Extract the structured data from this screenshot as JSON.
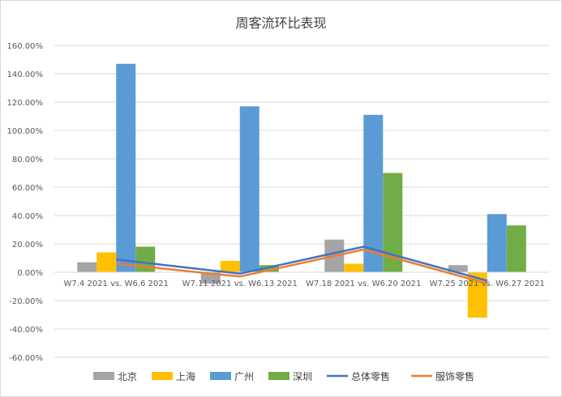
{
  "chart_data": {
    "type": "bar",
    "title": "周客流环比表现",
    "categories": [
      "W7.4 2021 vs. W6.6 2021",
      "W7.11 2021 vs. W6.13 2021",
      "W7.18 2021 vs. W6.20 2021",
      "W7.25 2021 vs. W6.27 2021"
    ],
    "series": [
      {
        "name": "北京",
        "kind": "bar",
        "color": "#a5a5a5",
        "values": [
          7,
          -8,
          23,
          5
        ]
      },
      {
        "name": "上海",
        "kind": "bar",
        "color": "#ffc000",
        "values": [
          14,
          8,
          6,
          -32
        ]
      },
      {
        "name": "广州",
        "kind": "bar",
        "color": "#5b9bd5",
        "values": [
          147,
          117,
          111,
          41
        ]
      },
      {
        "name": "深圳",
        "kind": "bar",
        "color": "#70ad47",
        "values": [
          18,
          5,
          70,
          33
        ]
      },
      {
        "name": "总体零售",
        "kind": "line",
        "color": "#4472c4",
        "values": [
          9,
          -1,
          18,
          -6
        ]
      },
      {
        "name": "服饰零售",
        "kind": "line",
        "color": "#ed7d31",
        "values": [
          6,
          -3,
          16,
          -8
        ]
      }
    ],
    "ylim": [
      -60,
      160
    ],
    "yticks": [
      -60,
      -40,
      -20,
      0,
      20,
      40,
      60,
      80,
      100,
      120,
      140,
      160
    ],
    "ytick_labels": [
      "-60.00%",
      "-40.00%",
      "-20.00%",
      "0.00%",
      "20.00%",
      "40.00%",
      "60.00%",
      "80.00%",
      "100.00%",
      "120.00%",
      "140.00%",
      "160.00%"
    ],
    "grid": true,
    "legend_position": "bottom"
  }
}
